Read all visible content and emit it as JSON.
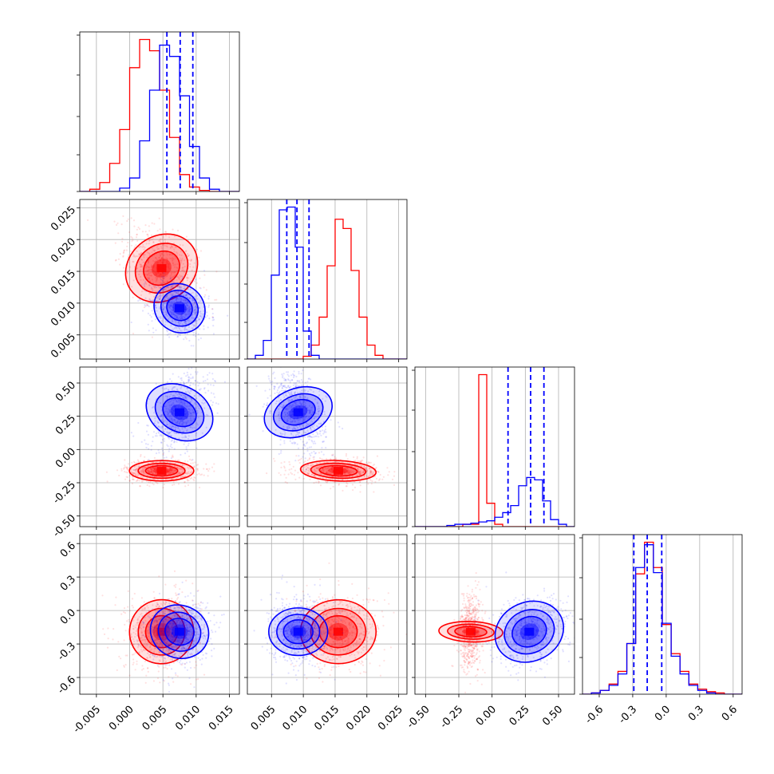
{
  "chart_data": {
    "type": "corner",
    "grid": true,
    "colors": {
      "series_red": "#ff0000",
      "series_blue": "#0000ff",
      "axes": "#000000",
      "grid": "#b0b0b0"
    },
    "dims": [
      {
        "range": [
          -0.0075,
          0.0165
        ],
        "ticks": [
          "-0.005",
          "0.000",
          "0.005",
          "0.010",
          "0.015"
        ],
        "tick_values": [
          -0.005,
          0.0,
          0.005,
          0.01,
          0.015
        ]
      },
      {
        "range": [
          0.0012,
          0.0263
        ],
        "ticks": [
          "0.005",
          "0.010",
          "0.015",
          "0.020",
          "0.025"
        ],
        "tick_values": [
          0.005,
          0.01,
          0.015,
          0.02,
          0.025
        ]
      },
      {
        "range": [
          -0.58,
          0.62
        ],
        "ticks": [
          "-0.50",
          "-0.25",
          "0.00",
          "0.25",
          "0.50"
        ],
        "tick_values": [
          -0.5,
          -0.25,
          0.0,
          0.25,
          0.5
        ]
      },
      {
        "range": [
          -0.75,
          0.68
        ],
        "ticks": [
          "-0.6",
          "-0.3",
          "0.0",
          "0.3",
          "0.6"
        ],
        "tick_values": [
          -0.6,
          -0.3,
          0.0,
          0.3,
          0.6
        ]
      }
    ],
    "series": [
      {
        "color": "red",
        "mean": [
          0.0048,
          0.0155,
          -0.16,
          -0.19
        ],
        "std": [
          0.0022,
          0.0027,
          0.035,
          0.13
        ],
        "corr": {
          "0-1": -0.45,
          "0-2": 0.0,
          "1-2": -0.15,
          "0-3": 0.05,
          "1-3": 0.0,
          "2-3": 0.1
        }
      },
      {
        "color": "blue",
        "mean": [
          0.0075,
          0.0092,
          0.28,
          -0.19
        ],
        "std": [
          0.0018,
          0.0017,
          0.12,
          0.12
        ],
        "corr": {
          "0-1": -0.3,
          "0-2": 0.45,
          "1-2": -0.35,
          "0-3": 0.1,
          "1-3": 0.0,
          "2-3": 0.2
        }
      }
    ],
    "histograms": [
      {
        "dim": 0,
        "red_counts": [
          0,
          2,
          8,
          25,
          55,
          110,
          135,
          125,
          90,
          48,
          15,
          4,
          1,
          0,
          0,
          0
        ],
        "blue_counts": [
          0,
          0,
          0,
          0,
          3,
          12,
          45,
          90,
          130,
          120,
          85,
          40,
          12,
          2,
          0,
          0
        ],
        "quantiles_blue": [
          0.0056,
          0.0076,
          0.0095
        ]
      },
      {
        "dim": 1,
        "red_counts": [
          0,
          0,
          0,
          0,
          0,
          0,
          0,
          3,
          15,
          45,
          100,
          150,
          140,
          95,
          45,
          15,
          4,
          0,
          0,
          0
        ],
        "blue_counts": [
          0,
          4,
          20,
          90,
          160,
          163,
          120,
          30,
          4,
          0,
          0,
          0,
          0,
          0,
          0,
          0,
          0,
          0,
          0,
          0
        ],
        "quantiles_blue": [
          0.0074,
          0.009,
          0.0109
        ]
      },
      {
        "dim": 2,
        "red_counts": [
          0,
          0,
          0,
          0,
          0,
          0,
          2,
          2,
          130,
          20,
          2,
          0,
          0,
          0,
          0,
          0,
          0,
          0,
          0,
          0
        ],
        "blue_counts": [
          0,
          0,
          0,
          0,
          1,
          2,
          2,
          3,
          4,
          5,
          8,
          12,
          18,
          35,
          42,
          40,
          22,
          6,
          2,
          0
        ],
        "quantiles_blue": [
          0.12,
          0.29,
          0.39
        ]
      },
      {
        "dim": 3,
        "red_counts": [
          0,
          1,
          3,
          8,
          18,
          40,
          95,
          120,
          100,
          55,
          32,
          18,
          8,
          4,
          2,
          1,
          0,
          0
        ],
        "blue_counts": [
          0,
          1,
          3,
          7,
          16,
          40,
          100,
          118,
          96,
          56,
          30,
          16,
          7,
          3,
          1,
          0,
          0,
          0
        ],
        "quantiles_blue": [
          -0.29,
          -0.17,
          -0.04
        ]
      }
    ]
  }
}
